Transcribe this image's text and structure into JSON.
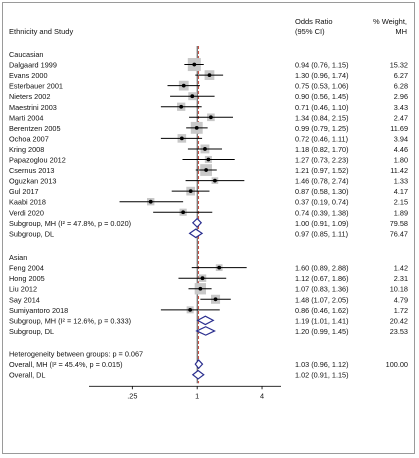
{
  "header": {
    "study_label": "Ethnicity and Study",
    "or_line1": "Odds Ratio",
    "or_line2": "(95% CI)",
    "wt_line1": "% Weight,",
    "wt_line2": "MH"
  },
  "chart_data": {
    "type": "forest",
    "xscale": "log",
    "xlim": [
      0.18,
      6.0
    ],
    "x_ticks": [
      ".25",
      "1",
      "4"
    ],
    "x_tick_values": [
      0.25,
      1,
      4
    ],
    "reference_line": 1,
    "overall_line": 1.03,
    "colors": {
      "point": "#000000",
      "box": "#c8c8c8",
      "diamond": "#2b2f8f",
      "ref_line": "#333333",
      "overall_line": "#c0392b"
    },
    "groups": [
      {
        "label": "Caucasian",
        "studies": [
          {
            "name": "Dalgaard 1999",
            "or": 0.94,
            "lo": 0.76,
            "hi": 1.15,
            "ci_text": "0.94 (0.76, 1.15)",
            "weight": "15.32",
            "w": 15.32
          },
          {
            "name": "Evans 2000",
            "or": 1.3,
            "lo": 0.96,
            "hi": 1.74,
            "ci_text": "1.30 (0.96, 1.74)",
            "weight": "6.27",
            "w": 6.27
          },
          {
            "name": "Esterbauer 2001",
            "or": 0.75,
            "lo": 0.53,
            "hi": 1.06,
            "ci_text": "0.75 (0.53, 1.06)",
            "weight": "6.28",
            "w": 6.28
          },
          {
            "name": "Nieters 2002",
            "or": 0.9,
            "lo": 0.56,
            "hi": 1.45,
            "ci_text": "0.90 (0.56, 1.45)",
            "weight": "2.96",
            "w": 2.96
          },
          {
            "name": "Maestrini 2003",
            "or": 0.71,
            "lo": 0.46,
            "hi": 1.1,
            "ci_text": "0.71 (0.46, 1.10)",
            "weight": "3.43",
            "w": 3.43
          },
          {
            "name": "Marti 2004",
            "or": 1.34,
            "lo": 0.84,
            "hi": 2.15,
            "ci_text": "1.34 (0.84, 2.15)",
            "weight": "2.47",
            "w": 2.47
          },
          {
            "name": "Berentzen 2005",
            "or": 0.99,
            "lo": 0.79,
            "hi": 1.25,
            "ci_text": "0.99 (0.79, 1.25)",
            "weight": "11.69",
            "w": 11.69
          },
          {
            "name": "Ochoa 2007",
            "or": 0.72,
            "lo": 0.46,
            "hi": 1.11,
            "ci_text": "0.72 (0.46, 1.11)",
            "weight": "3.94",
            "w": 3.94
          },
          {
            "name": "Kring 2008",
            "or": 1.18,
            "lo": 0.82,
            "hi": 1.7,
            "ci_text": "1.18 (0.82, 1.70)",
            "weight": "4.46",
            "w": 4.46
          },
          {
            "name": "Papazoglou 2012",
            "or": 1.27,
            "lo": 0.73,
            "hi": 2.23,
            "ci_text": "1.27 (0.73, 2.23)",
            "weight": "1.80",
            "w": 1.8
          },
          {
            "name": "Csernus 2013",
            "or": 1.21,
            "lo": 0.97,
            "hi": 1.52,
            "ci_text": "1.21 (0.97, 1.52)",
            "weight": "11.42",
            "w": 11.42
          },
          {
            "name": "Oguzkan 2013",
            "or": 1.46,
            "lo": 0.78,
            "hi": 2.74,
            "ci_text": "1.46 (0.78, 2.74)",
            "weight": "1.33",
            "w": 1.33
          },
          {
            "name": "Gul 2017",
            "or": 0.87,
            "lo": 0.58,
            "hi": 1.3,
            "ci_text": "0.87 (0.58, 1.30)",
            "weight": "4.17",
            "w": 4.17
          },
          {
            "name": "Kaabi 2018",
            "or": 0.37,
            "lo": 0.19,
            "hi": 0.74,
            "ci_text": "0.37 (0.19, 0.74)",
            "weight": "2.15",
            "w": 2.15
          },
          {
            "name": "Verdi 2020",
            "or": 0.74,
            "lo": 0.39,
            "hi": 1.38,
            "ci_text": "0.74 (0.39, 1.38)",
            "weight": "1.89",
            "w": 1.89
          }
        ],
        "subtotals": [
          {
            "label": "Subgroup, MH (I² = 47.8%, p = 0.020)",
            "or": 1.0,
            "lo": 0.91,
            "hi": 1.09,
            "ci_text": "1.00 (0.91, 1.09)",
            "weight": "79.58"
          },
          {
            "label": "Subgroup, DL",
            "or": 0.97,
            "lo": 0.85,
            "hi": 1.11,
            "ci_text": "0.97 (0.85, 1.11)",
            "weight": "76.47"
          }
        ]
      },
      {
        "label": "Asian",
        "studies": [
          {
            "name": "Feng 2004",
            "or": 1.6,
            "lo": 0.89,
            "hi": 2.88,
            "ci_text": "1.60 (0.89, 2.88)",
            "weight": "1.42",
            "w": 1.42
          },
          {
            "name": "Hong 2005",
            "or": 1.12,
            "lo": 0.67,
            "hi": 1.86,
            "ci_text": "1.12 (0.67, 1.86)",
            "weight": "2.31",
            "w": 2.31
          },
          {
            "name": "Liu 2012",
            "or": 1.07,
            "lo": 0.83,
            "hi": 1.36,
            "ci_text": "1.07 (0.83, 1.36)",
            "weight": "10.18",
            "w": 10.18
          },
          {
            "name": "Say 2014",
            "or": 1.48,
            "lo": 1.07,
            "hi": 2.05,
            "ci_text": "1.48 (1.07, 2.05)",
            "weight": "4.79",
            "w": 4.79
          },
          {
            "name": "Sumiyantoro 2018",
            "or": 0.86,
            "lo": 0.46,
            "hi": 1.62,
            "ci_text": "0.86 (0.46, 1.62)",
            "weight": "1.72",
            "w": 1.72
          }
        ],
        "subtotals": [
          {
            "label": "Subgroup, MH (I² = 12.6%, p = 0.333)",
            "or": 1.19,
            "lo": 1.01,
            "hi": 1.41,
            "ci_text": "1.19 (1.01, 1.41)",
            "weight": "20.42"
          },
          {
            "label": "Subgroup, DL",
            "or": 1.2,
            "lo": 0.99,
            "hi": 1.45,
            "ci_text": "1.20 (0.99, 1.45)",
            "weight": "23.53"
          }
        ]
      }
    ],
    "heterogeneity": "Heterogeneity between groups: p = 0.067",
    "overall": [
      {
        "label": "Overall, MH (I² = 45.4%, p = 0.015)",
        "or": 1.03,
        "lo": 0.96,
        "hi": 1.12,
        "ci_text": "1.03 (0.96, 1.12)",
        "weight": "100.00"
      },
      {
        "label": "Overall, DL",
        "or": 1.02,
        "lo": 0.91,
        "hi": 1.15,
        "ci_text": "1.02 (0.91, 1.15)",
        "weight": ""
      }
    ]
  }
}
